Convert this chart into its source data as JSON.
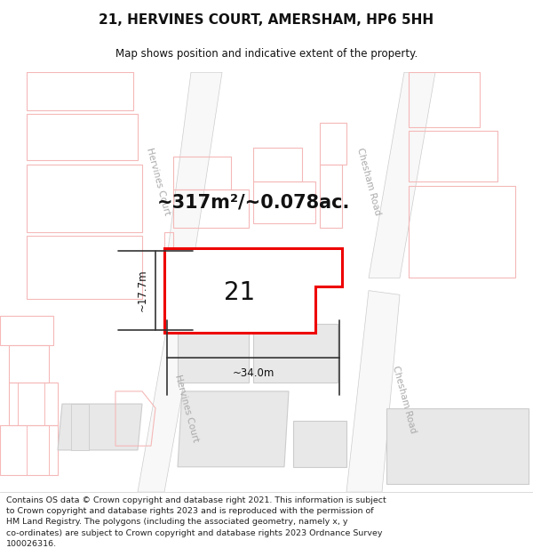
{
  "title": "21, HERVINES COURT, AMERSHAM, HP6 5HH",
  "subtitle": "Map shows position and indicative extent of the property.",
  "footer_line1": "Contains OS data © Crown copyright and database right 2021. This information is subject",
  "footer_line2": "to Crown copyright and database rights 2023 and is reproduced with the permission of",
  "footer_line3": "HM Land Registry. The polygons (including the associated geometry, namely x, y",
  "footer_line4": "co-ordinates) are subject to Crown copyright and database rights 2023 Ordnance Survey",
  "footer_line5": "100026316.",
  "area_text": "~317m²/~0.078ac.",
  "label_21": "21",
  "dim_width": "~34.0m",
  "dim_height": "~17.7m",
  "bg_color": "#ffffff",
  "map_bg": "#ffffff",
  "road_outline_color": "#f5b8b8",
  "building_outline_fill": "#e8e8e8",
  "building_outline_edge": "#cccccc",
  "pink_line_color": "#f5b8b8",
  "grey_line_color": "#aaaaaa",
  "plot_fill": "#ffffff",
  "plot_stroke": "#ee0000",
  "dim_line_color": "#333333",
  "street_label_color": "#aaaaaa",
  "title_fontsize": 11,
  "subtitle_fontsize": 8.5,
  "footer_fontsize": 6.8,
  "area_fontsize": 15,
  "label_fontsize": 20,
  "dim_fontsize": 8.5
}
